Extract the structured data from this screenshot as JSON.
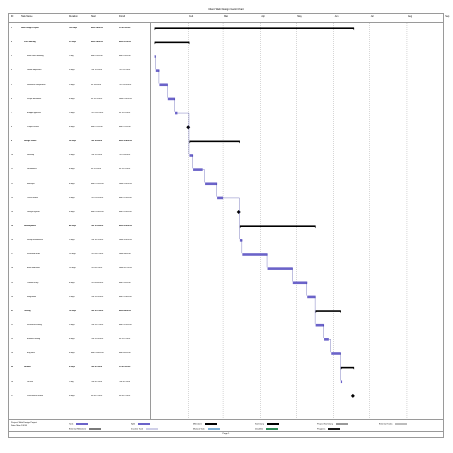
{
  "title": "Client Web Design Gantt Chart",
  "header": {
    "columns": [
      "ID",
      "Task Name",
      "Duration",
      "Start",
      "Finish"
    ],
    "months": [
      "Feb",
      "Mar",
      "Apr",
      "May",
      "Jun",
      "Jul",
      "Aug",
      "Sep"
    ]
  },
  "tasks": [
    {
      "id": "1",
      "name": "Web Design Project",
      "duration": "120 days",
      "start": "Mon 1/4/2016",
      "finish": "Fri 6/17/2016",
      "summary": true,
      "level": 0
    },
    {
      "id": "2",
      "name": "Pre-Planning",
      "duration": "21 days",
      "start": "Mon 1/4/2016",
      "finish": "Mon 2/1/2016",
      "summary": true,
      "level": 1
    },
    {
      "id": "3",
      "name": "Initial client meeting",
      "duration": "1 day",
      "start": "Mon 1/4/2016",
      "finish": "Mon 1/4/2016",
      "level": 2
    },
    {
      "id": "4",
      "name": "Define objectives",
      "duration": "3 days",
      "start": "Tue 1/5/2016",
      "finish": "Thu 1/7/2016",
      "level": 2
    },
    {
      "id": "5",
      "name": "Research competitors",
      "duration": "5 days",
      "start": "Fri 1/8/2016",
      "finish": "Thu 1/14/2016",
      "level": 2
    },
    {
      "id": "6",
      "name": "Scope document",
      "duration": "4 days",
      "start": "Fri 1/15/2016",
      "finish": "Wed 1/20/2016",
      "level": 2
    },
    {
      "id": "7",
      "name": "Budget approval",
      "duration": "2 days",
      "start": "Thu 1/21/2016",
      "finish": "Fri 1/22/2016",
      "level": 2
    },
    {
      "id": "8",
      "name": "Project kickoff",
      "duration": "0 days",
      "start": "Mon 2/1/2016",
      "finish": "Mon 2/1/2016",
      "level": 2
    },
    {
      "id": "9",
      "name": "Design Phase",
      "duration": "30 days",
      "start": "Tue 2/2/2016",
      "finish": "Mon 3/14/2016",
      "summary": true,
      "level": 1
    },
    {
      "id": "10",
      "name": "Sitemap",
      "duration": "3 days",
      "start": "Tue 2/2/2016",
      "finish": "Thu 2/4/2016",
      "level": 2
    },
    {
      "id": "11",
      "name": "Wireframes",
      "duration": "6 days",
      "start": "Fri 2/5/2016",
      "finish": "Fri 2/12/2016",
      "level": 2
    },
    {
      "id": "12",
      "name": "Mockups",
      "duration": "8 days",
      "start": "Mon 2/15/2016",
      "finish": "Wed 2/24/2016",
      "level": 2
    },
    {
      "id": "13",
      "name": "Client review",
      "duration": "3 days",
      "start": "Thu 2/25/2016",
      "finish": "Mon 2/29/2016",
      "level": 2
    },
    {
      "id": "14",
      "name": "Design sign-off",
      "duration": "0 days",
      "start": "Mon 3/14/2016",
      "finish": "Mon 3/14/2016",
      "level": 2
    },
    {
      "id": "15",
      "name": "Development",
      "duration": "45 days",
      "start": "Tue 3/15/2016",
      "finish": "Mon 5/16/2016",
      "summary": true,
      "level": 1
    },
    {
      "id": "16",
      "name": "Setup environment",
      "duration": "2 days",
      "start": "Tue 3/15/2016",
      "finish": "Wed 3/16/2016",
      "level": 2
    },
    {
      "id": "17",
      "name": "Front-end build",
      "duration": "15 days",
      "start": "Thu 3/17/2016",
      "finish": "Wed 4/6/2016",
      "level": 2
    },
    {
      "id": "18",
      "name": "Back-end build",
      "duration": "15 days",
      "start": "Thu 4/7/2016",
      "finish": "Wed 4/27/2016",
      "level": 2
    },
    {
      "id": "19",
      "name": "Content entry",
      "duration": "8 days",
      "start": "Thu 4/28/2016",
      "finish": "Mon 5/9/2016",
      "level": 2
    },
    {
      "id": "20",
      "name": "Integration",
      "duration": "5 days",
      "start": "Tue 5/10/2016",
      "finish": "Mon 5/16/2016",
      "level": 2
    },
    {
      "id": "21",
      "name": "Testing",
      "duration": "15 days",
      "start": "Tue 5/17/2016",
      "finish": "Mon 6/6/2016",
      "summary": true,
      "level": 1
    },
    {
      "id": "22",
      "name": "Functional testing",
      "duration": "5 days",
      "start": "Tue 5/17/2016",
      "finish": "Mon 5/23/2016",
      "level": 2
    },
    {
      "id": "23",
      "name": "Browser testing",
      "duration": "4 days",
      "start": "Tue 5/24/2016",
      "finish": "Fri 5/27/2016",
      "level": 2
    },
    {
      "id": "24",
      "name": "Bug fixes",
      "duration": "6 days",
      "start": "Mon 5/30/2016",
      "finish": "Mon 6/6/2016",
      "level": 2
    },
    {
      "id": "25",
      "name": "Launch",
      "duration": "9 days",
      "start": "Tue 6/7/2016",
      "finish": "Fri 6/17/2016",
      "summary": true,
      "level": 1
    },
    {
      "id": "26",
      "name": "Go live",
      "duration": "1 day",
      "start": "Tue 6/7/2016",
      "finish": "Tue 6/7/2016",
      "level": 2
    },
    {
      "id": "27",
      "name": "Post-launch review",
      "duration": "0 days",
      "start": "Fri 6/17/2016",
      "finish": "Fri 6/17/2016",
      "level": 2
    }
  ],
  "legend": {
    "project": "Project: Web Design Project",
    "date": "Date: Mon 1/4/16",
    "items": [
      {
        "label": "Task",
        "color": "#6b63c9"
      },
      {
        "label": "Split",
        "color": "#6b63c9"
      },
      {
        "label": "Milestone",
        "color": "#000000"
      },
      {
        "label": "Summary",
        "color": "#000000"
      },
      {
        "label": "Project Summary",
        "color": "#9a9a9a"
      },
      {
        "label": "External Tasks",
        "color": "#bdbdbd"
      },
      {
        "label": "External Milestone",
        "color": "#7a7a7a"
      },
      {
        "label": "Inactive Task",
        "color": "#cfcfe8"
      },
      {
        "label": "Manual Task",
        "color": "#7fb1d8"
      },
      {
        "label": "Deadline",
        "color": "#2e8b57"
      },
      {
        "label": "Progress",
        "color": "#1a1a1a"
      }
    ]
  },
  "footer": "Page 1",
  "colors": {
    "task": "#6b63c9",
    "summary": "#000000",
    "grid": "#9a9a9a",
    "link": "#2b2b9a"
  }
}
